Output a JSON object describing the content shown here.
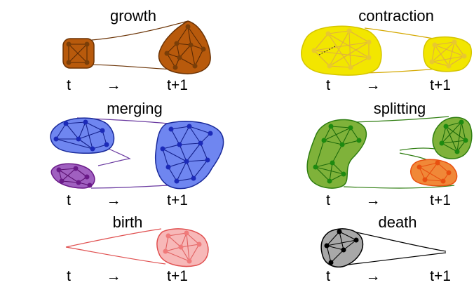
{
  "panels": [
    {
      "id": "growth",
      "title": "growth",
      "t_label": "t",
      "t1_label": "t+1",
      "color": "#b85a0c",
      "stroke": "#6b3305",
      "node": "#7a3e08"
    },
    {
      "id": "contraction",
      "title": "contraction",
      "t_label": "t",
      "t1_label": "t+1",
      "color": "#f2e600",
      "stroke": "#d4c400",
      "node": "#e8c830"
    },
    {
      "id": "merging",
      "title": "merging",
      "t_label": "t",
      "t1_label": "t+1",
      "color": "#6f86f0",
      "stroke": "#1a2a9a",
      "node": "#1c2ab8",
      "color2": "#a060c0",
      "node2": "#6a1a88"
    },
    {
      "id": "splitting",
      "title": "splitting",
      "t_label": "t",
      "t1_label": "t+1",
      "color": "#7fb23a",
      "stroke": "#2e7d10",
      "node": "#1d8a10",
      "color2": "#f08838",
      "node2": "#e85010"
    },
    {
      "id": "birth",
      "title": "birth",
      "t_label": "t",
      "t1_label": "t+1",
      "color": "#f7b8b8",
      "stroke": "#e05050",
      "node": "#f07a7a"
    },
    {
      "id": "death",
      "title": "death",
      "t_label": "t",
      "t1_label": "t+1",
      "color": "#a8a8a8",
      "stroke": "#000000",
      "node": "#000000"
    }
  ],
  "arrow_glyph": "→"
}
